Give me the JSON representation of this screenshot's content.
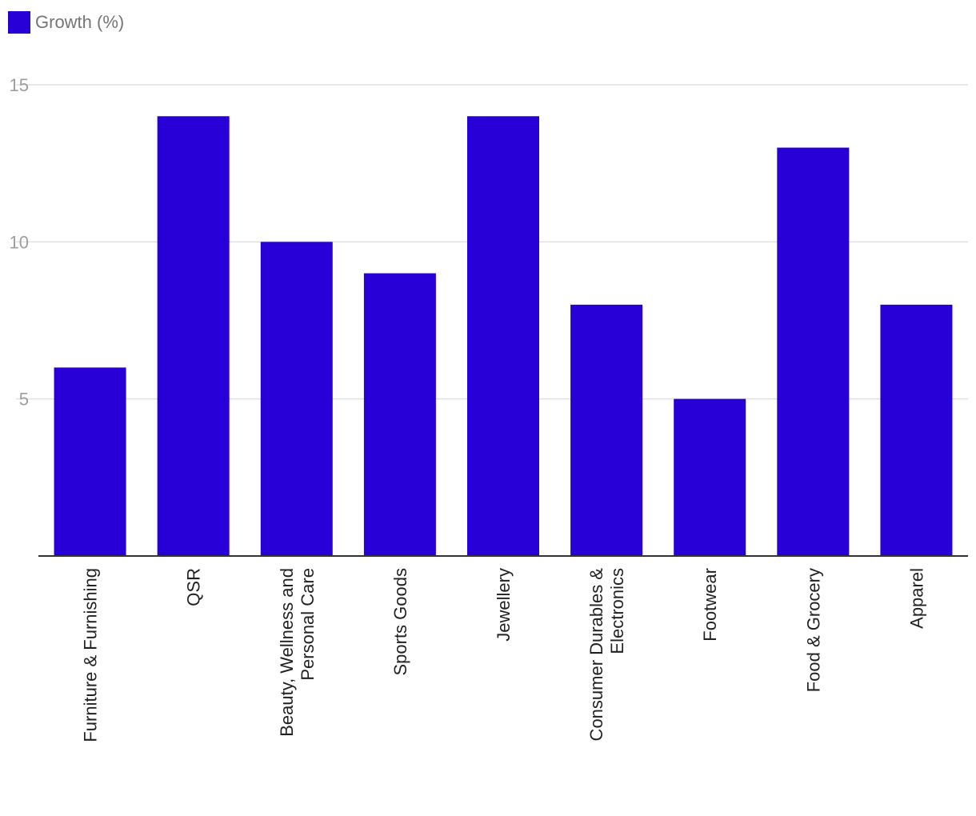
{
  "legend": {
    "label": "Growth (%)"
  },
  "colors": {
    "bar": "#2800d7",
    "grid": "#e0e0e0",
    "axis": "#333333"
  },
  "chart_data": {
    "type": "bar",
    "categories": [
      [
        "Furniture & Furnishing"
      ],
      [
        "QSR"
      ],
      [
        "Beauty, Wellness and",
        "Personal Care"
      ],
      [
        "Sports Goods"
      ],
      [
        "Jewellery"
      ],
      [
        "Consumer Durables &",
        "Electronics"
      ],
      [
        "Footwear"
      ],
      [
        "Food & Grocery"
      ],
      [
        "Apparel"
      ]
    ],
    "series": [
      {
        "name": "Growth (%)",
        "values": [
          6,
          14,
          10,
          9,
          14,
          8,
          5,
          13,
          8
        ]
      }
    ],
    "yticks": [
      5,
      10,
      15
    ],
    "ylim": [
      0,
      15.5
    ],
    "grid": true,
    "legend_position": "top-left"
  }
}
